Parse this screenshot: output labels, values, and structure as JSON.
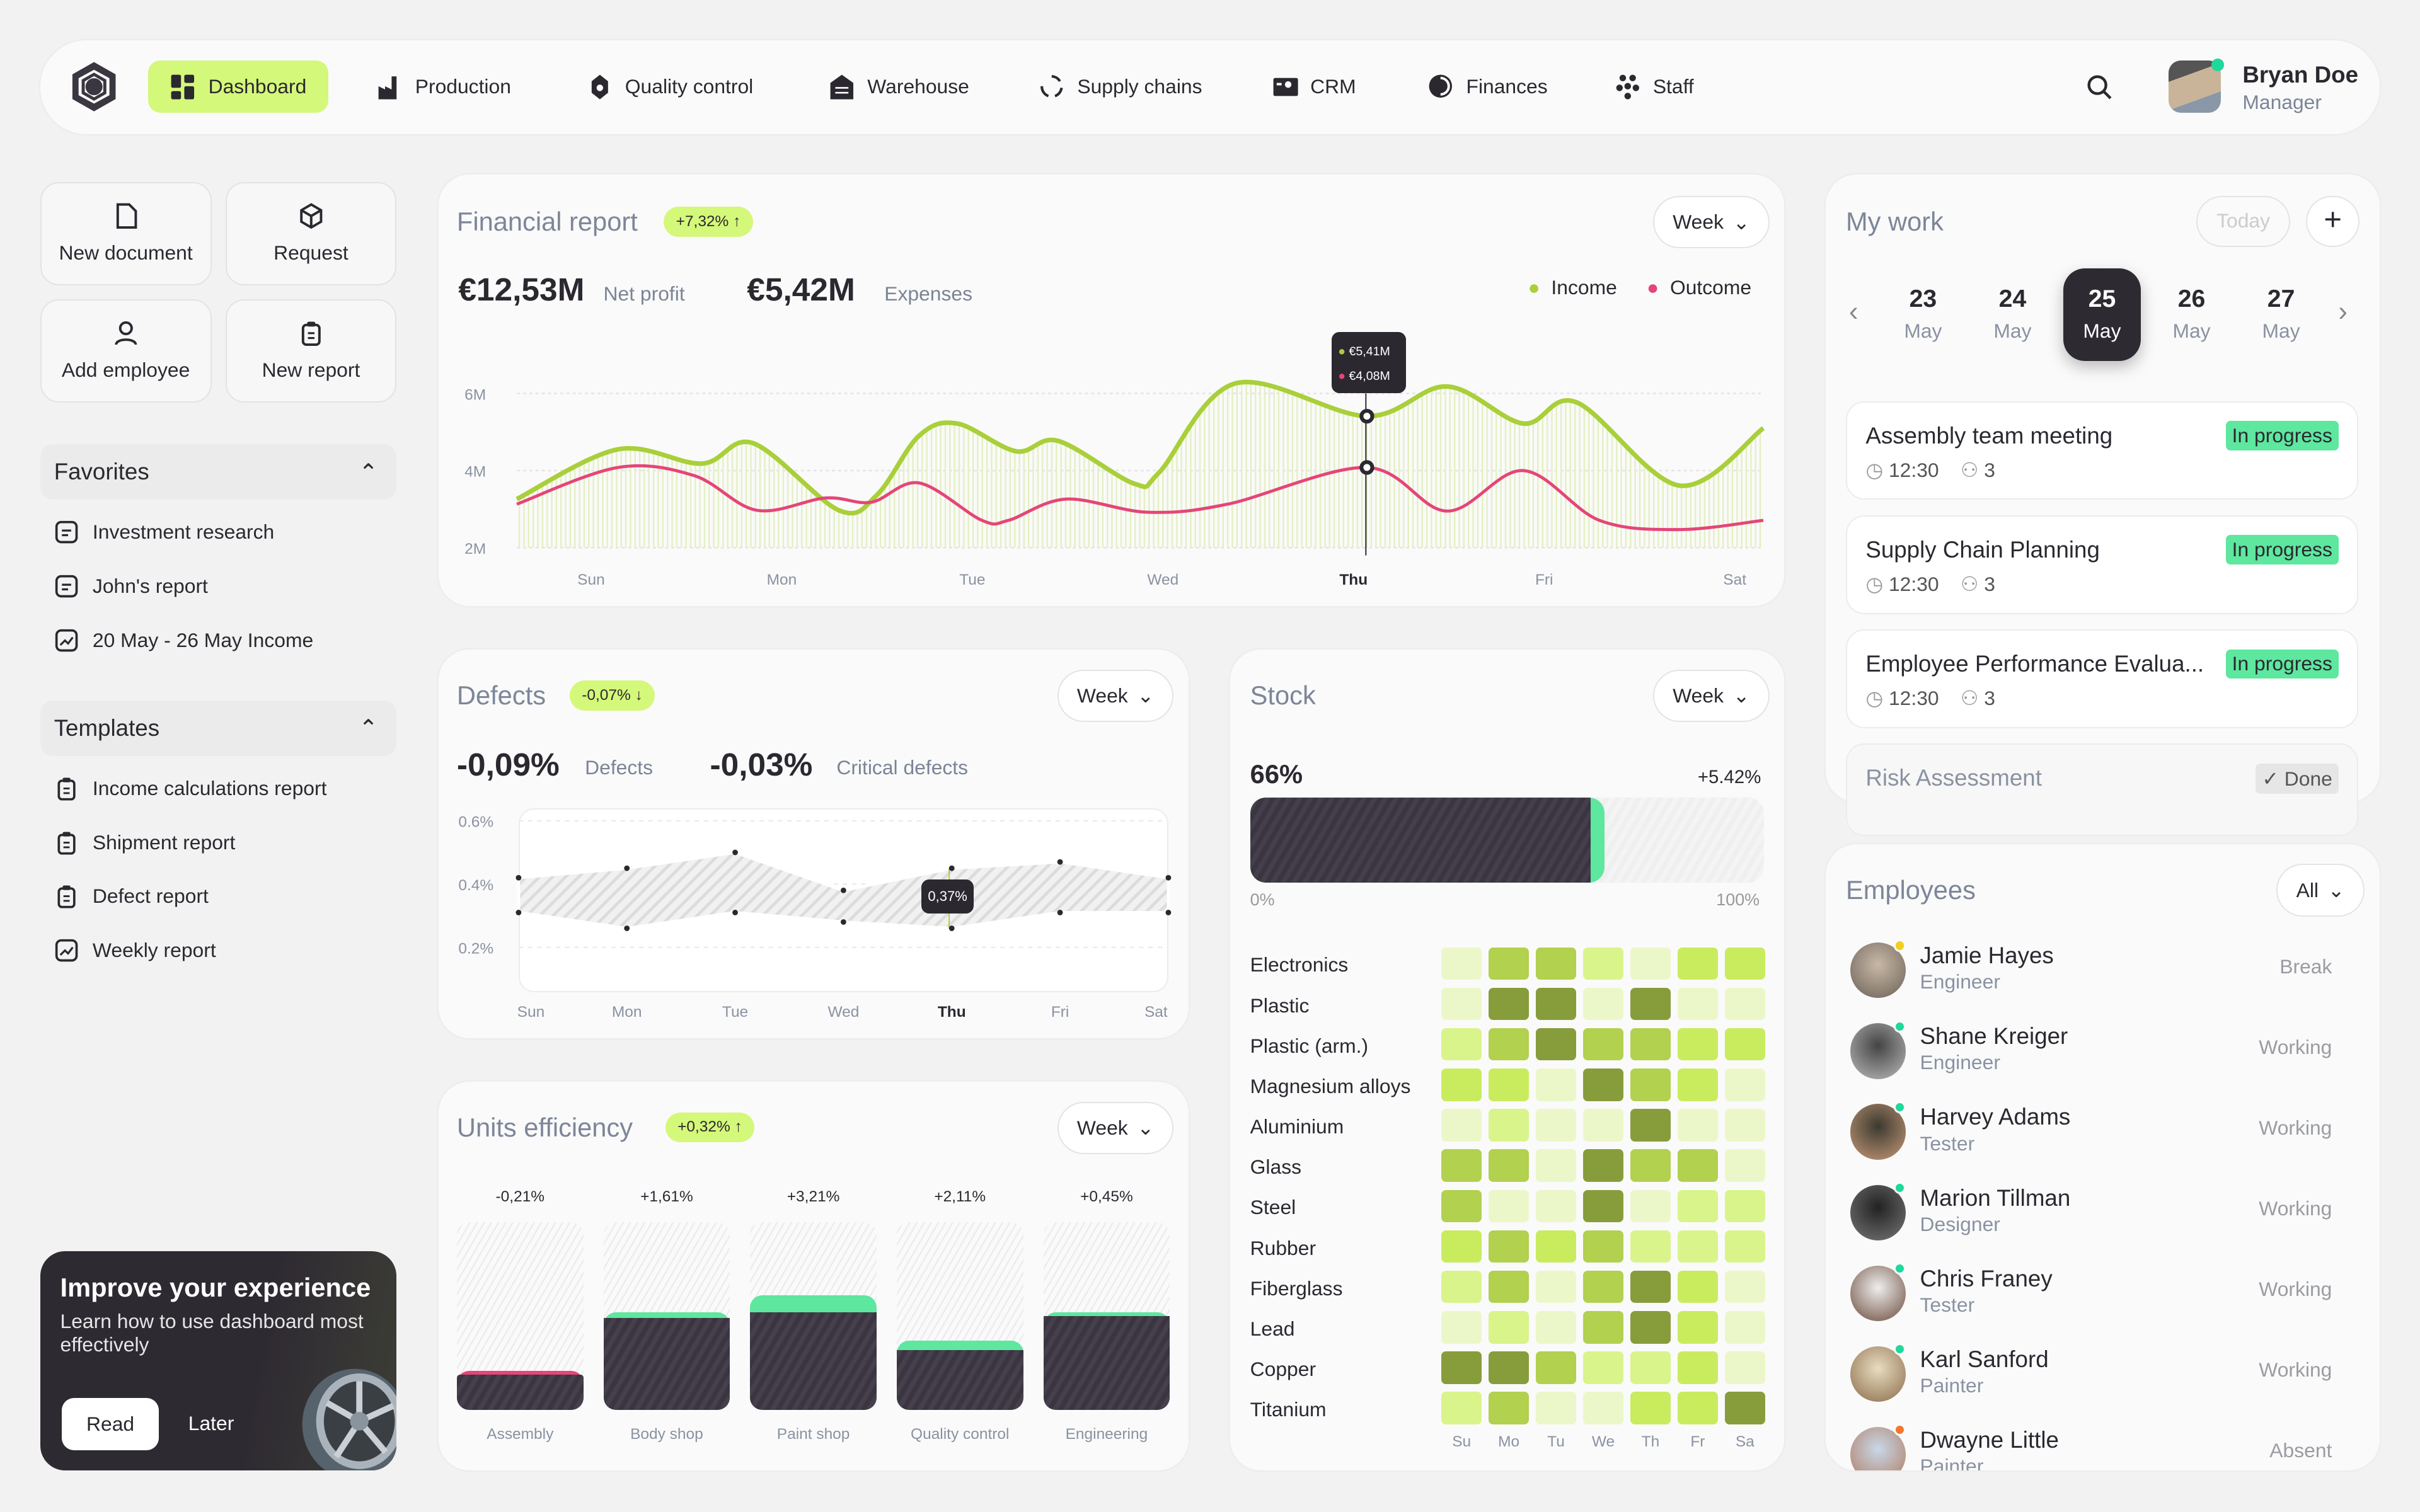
{
  "nav": {
    "items": [
      {
        "label": "Dashboard",
        "icon": "dashboard-icon",
        "active": true
      },
      {
        "label": "Production",
        "icon": "factory-icon"
      },
      {
        "label": "Quality control",
        "icon": "badge-icon"
      },
      {
        "label": "Warehouse",
        "icon": "warehouse-icon"
      },
      {
        "label": "Supply chains",
        "icon": "cycle-icon"
      },
      {
        "label": "CRM",
        "icon": "contact-card-icon"
      },
      {
        "label": "Finances",
        "icon": "coin-icon"
      },
      {
        "label": "Staff",
        "icon": "people-icon"
      }
    ],
    "user": {
      "name": "Bryan Doe",
      "role": "Manager",
      "online_color": "#1fd89b"
    }
  },
  "quick_actions": [
    {
      "label": "New document",
      "icon": "document-icon"
    },
    {
      "label": "Request",
      "icon": "box-icon"
    },
    {
      "label": "Add employee",
      "icon": "user-icon"
    },
    {
      "label": "New report",
      "icon": "clipboard-icon"
    }
  ],
  "favorites": {
    "title": "Favorites",
    "items": [
      {
        "label": "Investment research",
        "icon": "file-icon"
      },
      {
        "label": "John's report",
        "icon": "file-icon"
      },
      {
        "label": "20 May - 26 May Income",
        "icon": "chart-icon"
      }
    ]
  },
  "templates": {
    "title": "Templates",
    "items": [
      {
        "label": "Income calculations report",
        "icon": "clipboard-icon"
      },
      {
        "label": "Shipment report",
        "icon": "clipboard-icon"
      },
      {
        "label": "Defect report",
        "icon": "clipboard-icon"
      },
      {
        "label": "Weekly report",
        "icon": "chart-icon"
      }
    ]
  },
  "promo": {
    "title": "Improve your experience",
    "text": "Learn how to use dashboard most effectively",
    "read": "Read",
    "later": "Later"
  },
  "financial": {
    "title": "Financial report",
    "badge": "+7,32% ↑",
    "period": "Week",
    "net_value": "€12,53M",
    "net_label": "Net profit",
    "exp_value": "€5,42M",
    "exp_label": "Expenses",
    "legend_income": "Income",
    "legend_outcome": "Outcome",
    "tooltip_income": "€5,41M",
    "tooltip_outcome": "€4,08M"
  },
  "defects": {
    "title": "Defects",
    "badge": "-0,07% ↓",
    "period": "Week",
    "defects_value": "-0,09%",
    "defects_label": "Defects",
    "critical_value": "-0,03%",
    "critical_label": "Critical defects",
    "tooltip": "0,37%"
  },
  "units": {
    "title": "Units efficiency",
    "badge": "+0,32% ↑",
    "period": "Week"
  },
  "stock": {
    "title": "Stock",
    "period": "Week",
    "value": "66%",
    "change": "+5.42%",
    "min_label": "0%",
    "max_label": "100%",
    "fill": 0.66
  },
  "mywork": {
    "title": "My work",
    "today": "Today",
    "add": "+",
    "days": [
      {
        "n": "23",
        "m": "May"
      },
      {
        "n": "24",
        "m": "May"
      },
      {
        "n": "25",
        "m": "May",
        "selected": true
      },
      {
        "n": "26",
        "m": "May"
      },
      {
        "n": "27",
        "m": "May"
      }
    ],
    "tasks": [
      {
        "title": "Assembly team meeting",
        "status": "In progress",
        "time": "12:30",
        "people": "3"
      },
      {
        "title": "Supply Chain Planning",
        "status": "In progress",
        "time": "12:30",
        "people": "3"
      },
      {
        "title": "Employee Performance Evalua...",
        "status": "In progress",
        "time": "12:30",
        "people": "3"
      },
      {
        "title": "Risk Assessment",
        "status": "Done"
      }
    ]
  },
  "employees": {
    "title": "Employees",
    "filter": "All",
    "list": [
      {
        "name": "Jamie Hayes",
        "role": "Engineer",
        "status": "Break",
        "dot": "#f2cf1d"
      },
      {
        "name": "Shane Kreiger",
        "role": "Engineer",
        "status": "Working",
        "dot": "#1fd89b"
      },
      {
        "name": "Harvey Adams",
        "role": "Tester",
        "status": "Working",
        "dot": "#1fd89b"
      },
      {
        "name": "Marion Tillman",
        "role": "Designer",
        "status": "Working",
        "dot": "#1fd89b"
      },
      {
        "name": "Chris Franey",
        "role": "Tester",
        "status": "Working",
        "dot": "#1fd89b"
      },
      {
        "name": "Karl Sanford",
        "role": "Painter",
        "status": "Working",
        "dot": "#1fd89b"
      },
      {
        "name": "Dwayne Little",
        "role": "Painter",
        "status": "Absent",
        "dot": "#f2762e"
      }
    ]
  },
  "chart_data": [
    {
      "type": "line",
      "id": "financial",
      "x_labels": [
        "Sun",
        "Mon",
        "Tue",
        "Wed",
        "Thu",
        "Fri",
        "Sat"
      ],
      "highlight": "Thu",
      "y_ticks": [
        "2M",
        "4M",
        "6M"
      ],
      "ylim": [
        2,
        6
      ],
      "series": [
        {
          "name": "Income",
          "color": "#a9cf3a",
          "points": [
            [
              -0.39,
              3.26
            ],
            [
              0.14,
              4.55
            ],
            [
              0.58,
              4.18
            ],
            [
              0.85,
              4.71
            ],
            [
              1.3,
              2.97
            ],
            [
              1.5,
              3.37
            ],
            [
              1.72,
              4.9
            ],
            [
              1.92,
              5.22
            ],
            [
              2.23,
              4.5
            ],
            [
              2.45,
              4.77
            ],
            [
              2.85,
              3.66
            ],
            [
              2.98,
              3.95
            ],
            [
              3.38,
              6.26
            ],
            [
              4.07,
              5.41
            ],
            [
              4.49,
              6.18
            ],
            [
              4.89,
              5.22
            ],
            [
              5.17,
              5.77
            ],
            [
              5.71,
              3.61
            ],
            [
              6.15,
              5.1
            ]
          ]
        },
        {
          "name": "Outcome",
          "color": "#e5457a",
          "points": [
            [
              -0.39,
              3.13
            ],
            [
              0.14,
              4.08
            ],
            [
              0.54,
              3.87
            ],
            [
              0.87,
              2.97
            ],
            [
              1.23,
              3.29
            ],
            [
              1.47,
              3.18
            ],
            [
              1.72,
              3.68
            ],
            [
              2.05,
              2.71
            ],
            [
              2.19,
              2.71
            ],
            [
              2.49,
              3.26
            ],
            [
              2.92,
              2.92
            ],
            [
              3.34,
              3.13
            ],
            [
              4.07,
              4.08
            ],
            [
              4.49,
              2.95
            ],
            [
              4.89,
              4.0
            ],
            [
              5.29,
              2.71
            ],
            [
              5.71,
              2.47
            ],
            [
              6.15,
              2.71
            ]
          ]
        }
      ]
    },
    {
      "type": "area",
      "id": "defects",
      "x_labels": [
        "Sun",
        "Mon",
        "Tue",
        "Wed",
        "Thu",
        "Fri",
        "Sat"
      ],
      "highlight": "Thu",
      "y_ticks": [
        "0.2%",
        "0.4%",
        "0.6%"
      ],
      "ylim": [
        0.2,
        0.6
      ],
      "upper": [
        0.42,
        0.45,
        0.5,
        0.38,
        0.45,
        0.47,
        0.42
      ],
      "lower": [
        0.31,
        0.26,
        0.31,
        0.28,
        0.26,
        0.31,
        0.31
      ]
    },
    {
      "type": "bar",
      "id": "units",
      "categories": [
        "Assembly",
        "Body shop",
        "Paint shop",
        "Quality control",
        "Engineering"
      ],
      "labels": [
        "-0,21%",
        "+1,61%",
        "+3,21%",
        "+2,11%",
        "+0,45%"
      ],
      "base": [
        0.19,
        0.49,
        0.52,
        0.32,
        0.5
      ],
      "delta": [
        -0.02,
        0.03,
        0.09,
        0.05,
        0.02
      ]
    },
    {
      "type": "heatmap",
      "id": "stock",
      "columns": [
        "Su",
        "Mo",
        "Tu",
        "We",
        "Th",
        "Fr",
        "Sa"
      ],
      "rows": [
        "Electronics",
        "Plastic",
        "Plastic (arm.)",
        "Magnesium alloys",
        "Aluminium",
        "Glass",
        "Steel",
        "Rubber",
        "Fiberglass",
        "Lead",
        "Copper",
        "Titanium"
      ],
      "levels": [
        [
          0,
          3,
          3,
          1,
          0,
          2,
          2
        ],
        [
          0,
          4,
          4,
          0,
          4,
          0,
          0
        ],
        [
          1,
          3,
          4,
          3,
          3,
          2,
          2
        ],
        [
          2,
          2,
          0,
          4,
          3,
          2,
          0
        ],
        [
          0,
          1,
          0,
          0,
          4,
          0,
          0
        ],
        [
          3,
          3,
          0,
          4,
          3,
          3,
          0
        ],
        [
          3,
          0,
          0,
          4,
          0,
          1,
          1
        ],
        [
          2,
          3,
          2,
          3,
          1,
          1,
          1
        ],
        [
          1,
          3,
          0,
          3,
          4,
          2,
          0
        ],
        [
          0,
          1,
          0,
          3,
          4,
          2,
          0
        ],
        [
          4,
          4,
          3,
          1,
          1,
          2,
          0
        ],
        [
          1,
          3,
          0,
          0,
          2,
          2,
          4
        ]
      ],
      "colors": [
        "#ecf7c9",
        "#d9f48a",
        "#c9ec5f",
        "#b1d14f",
        "#879d3c"
      ]
    }
  ]
}
